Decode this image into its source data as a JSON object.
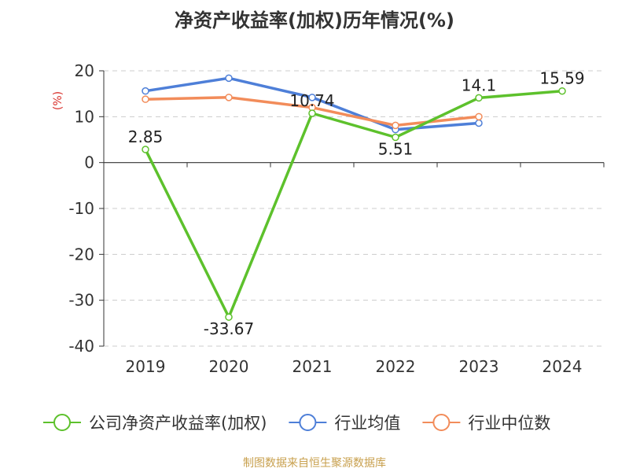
{
  "chart_data": {
    "type": "line",
    "title": "净资产收益率(加权)历年情况(%)",
    "ylabel": "(%)",
    "xlabel": "",
    "categories": [
      "2019",
      "2020",
      "2021",
      "2022",
      "2023",
      "2024"
    ],
    "ylim": [
      -40,
      20
    ],
    "yticks": [
      20,
      10,
      0,
      -10,
      -20,
      -30,
      -40
    ],
    "grid": true,
    "legend_position": "bottom",
    "series": [
      {
        "name": "公司净资产收益率(加权)",
        "color": "#5dc12c",
        "values": [
          2.85,
          -33.67,
          10.74,
          5.51,
          14.1,
          15.59
        ],
        "data_labels": [
          "2.85",
          "-33.67",
          "10.74",
          "5.51",
          "14.1",
          "15.59"
        ]
      },
      {
        "name": "行业均值",
        "color": "#4e7fd8",
        "values": [
          15.6,
          18.4,
          14.2,
          7.2,
          8.6,
          null
        ]
      },
      {
        "name": "行业中位数",
        "color": "#f28c5a",
        "values": [
          13.8,
          14.2,
          12.0,
          8.1,
          10.0,
          null
        ]
      }
    ]
  },
  "source": "制图数据来自恒生聚源数据库"
}
